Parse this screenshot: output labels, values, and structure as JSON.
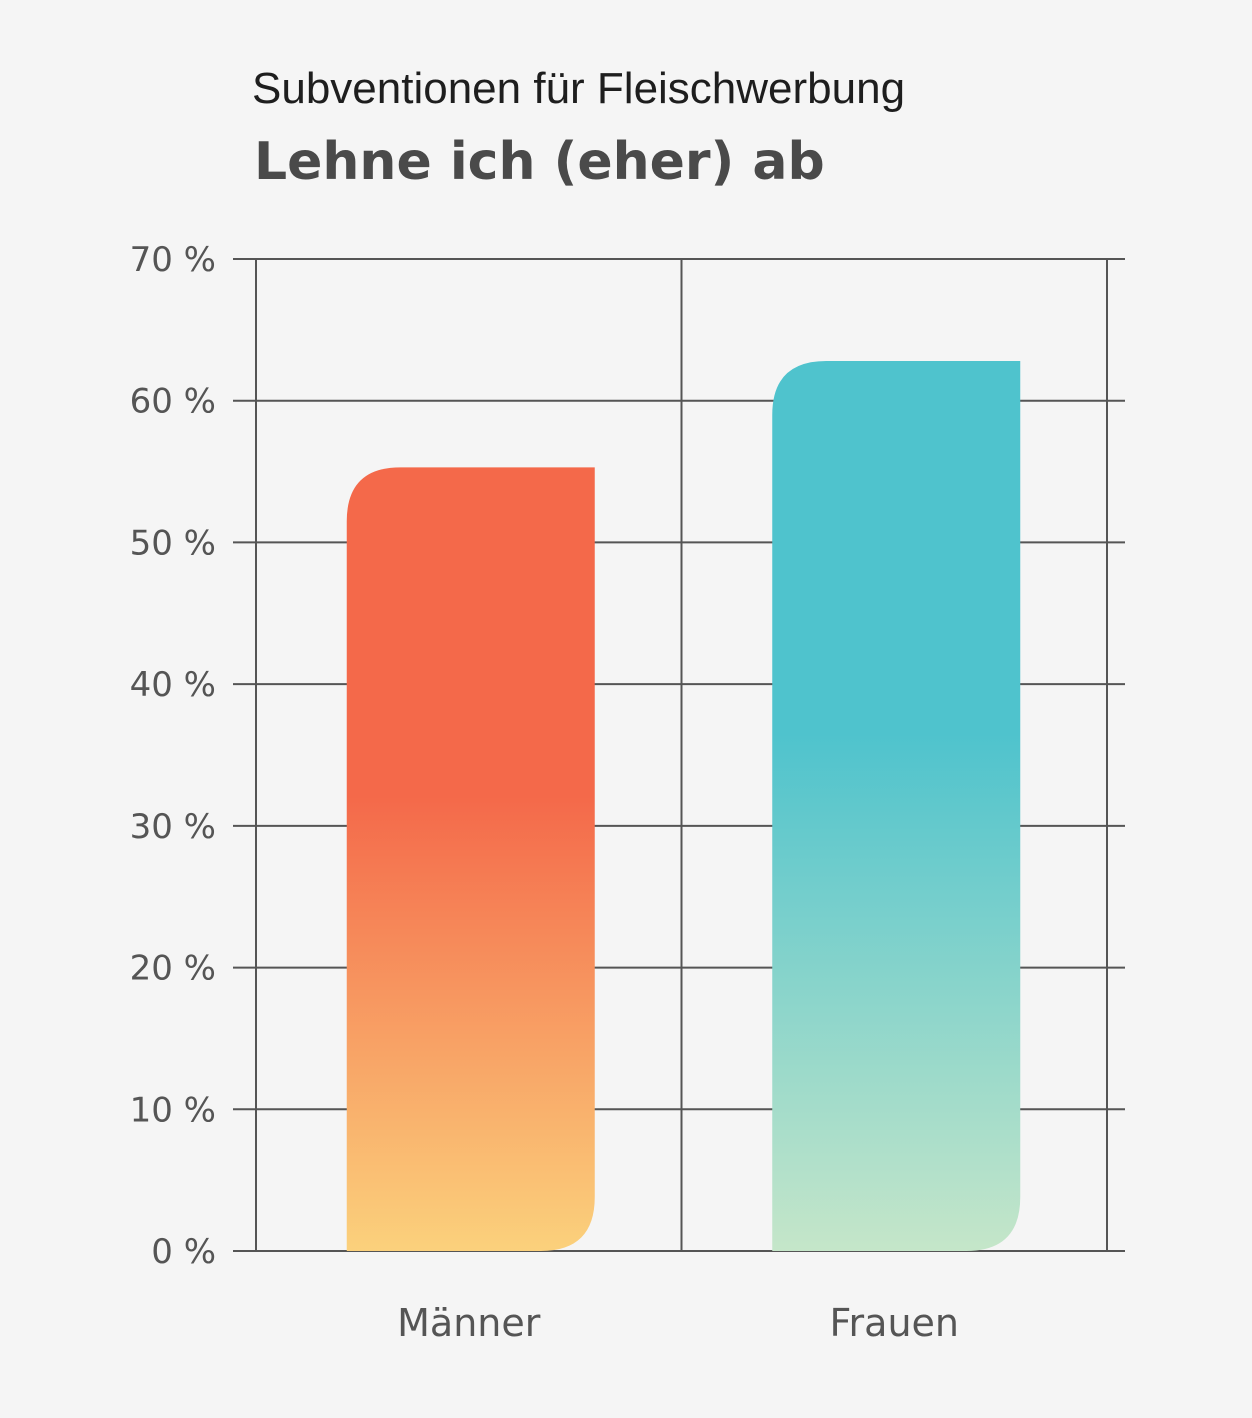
{
  "chart_data": {
    "type": "bar",
    "title": "Subventionen für Fleischwerbung",
    "subtitle": "Lehne ich (eher) ab",
    "categories": [
      "Männer",
      "Frauen"
    ],
    "values": [
      55.3,
      62.8
    ],
    "ylim": [
      0,
      70
    ],
    "yticks": [
      "0 %",
      "10 %",
      "20 %",
      "30 %",
      "40 %",
      "50 %",
      "60 %",
      "70 %"
    ],
    "grid": true,
    "series_colors": [
      {
        "top": "#f4694a",
        "mid": "#f4694a",
        "bottom": "#fbd17c"
      },
      {
        "top": "#4fc3cd",
        "mid": "#4fc3cd",
        "bottom": "#c5e6c9"
      }
    ],
    "grid_color": "#555555"
  }
}
